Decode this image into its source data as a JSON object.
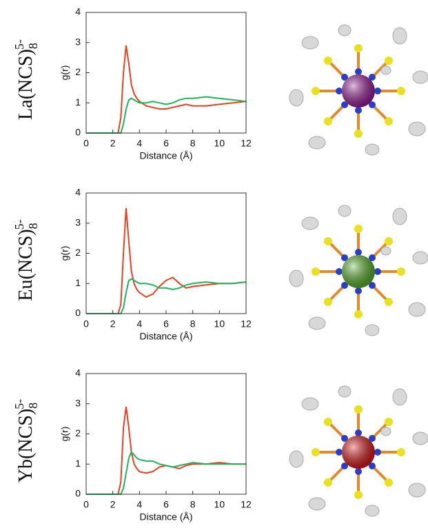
{
  "chart_data": [
    {
      "type": "line",
      "title": "La(NCS)",
      "title_sub": "8",
      "title_sup": "5-",
      "xlabel": "Distance (Å)",
      "ylabel": "g(r)",
      "xlim": [
        0,
        12
      ],
      "xticks": [
        0,
        2,
        4,
        6,
        8,
        10,
        12
      ],
      "ylim": [
        0,
        4
      ],
      "yticks": [
        0,
        1,
        2,
        3,
        4
      ],
      "x": [
        0,
        2,
        2.4,
        2.6,
        2.8,
        3,
        3.2,
        3.4,
        3.6,
        3.8,
        4,
        4.5,
        5,
        5.5,
        6,
        6.5,
        7,
        7.5,
        8,
        9,
        10,
        11,
        12
      ],
      "series": [
        {
          "color": "#e8401c",
          "values": [
            0,
            0,
            0,
            0.5,
            2.0,
            2.9,
            2.3,
            1.6,
            1.3,
            1.15,
            1.05,
            0.9,
            0.85,
            0.8,
            0.8,
            0.85,
            0.9,
            0.95,
            0.9,
            0.9,
            0.95,
            1.0,
            1.05
          ]
        },
        {
          "color": "#1fb35a",
          "values": [
            0,
            0,
            0,
            0,
            0.3,
            0.8,
            1.1,
            1.15,
            1.1,
            1.05,
            1.0,
            1.0,
            1.05,
            1.0,
            0.95,
            1.0,
            1.1,
            1.15,
            1.15,
            1.2,
            1.15,
            1.1,
            1.05
          ]
        }
      ],
      "molecule_color": "#9b1f9b"
    },
    {
      "type": "line",
      "title": "Eu(NCS)",
      "title_sub": "8",
      "title_sup": "5-",
      "xlabel": "Distance (Å)",
      "ylabel": "g(r)",
      "xlim": [
        0,
        12
      ],
      "xticks": [
        0,
        2,
        4,
        6,
        8,
        10,
        12
      ],
      "ylim": [
        0,
        4
      ],
      "yticks": [
        0,
        1,
        2,
        3,
        4
      ],
      "x": [
        0,
        2,
        2.4,
        2.6,
        2.8,
        3,
        3.2,
        3.4,
        3.6,
        3.8,
        4,
        4.5,
        5,
        5.5,
        6,
        6.5,
        7,
        7.5,
        8,
        9,
        10,
        11,
        12
      ],
      "series": [
        {
          "color": "#e8401c",
          "values": [
            0,
            0,
            0,
            0.3,
            2.0,
            3.5,
            2.4,
            1.4,
            1.0,
            0.8,
            0.7,
            0.55,
            0.65,
            0.9,
            1.1,
            1.2,
            1.0,
            0.85,
            0.9,
            0.95,
            1.0,
            1.0,
            1.05
          ]
        },
        {
          "color": "#1fb35a",
          "values": [
            0,
            0,
            0,
            0,
            0.2,
            0.7,
            1.1,
            1.15,
            1.1,
            1.05,
            1.0,
            1.0,
            0.95,
            0.85,
            0.85,
            0.8,
            0.85,
            0.95,
            1.0,
            1.05,
            1.0,
            1.0,
            1.05
          ]
        }
      ],
      "molecule_color": "#5cb82a"
    },
    {
      "type": "line",
      "title": "Yb(NCS)",
      "title_sub": "8",
      "title_sup": "5-",
      "xlabel": "Distance (Å)",
      "ylabel": "g(r)",
      "xlim": [
        0,
        12
      ],
      "xticks": [
        0,
        2,
        4,
        6,
        8,
        10,
        12
      ],
      "ylim": [
        0,
        4
      ],
      "yticks": [
        0,
        1,
        2,
        3,
        4
      ],
      "x": [
        0,
        2,
        2.4,
        2.6,
        2.8,
        3,
        3.2,
        3.4,
        3.6,
        3.8,
        4,
        4.5,
        5,
        5.5,
        6,
        6.5,
        7,
        7.5,
        8,
        9,
        10,
        11,
        12
      ],
      "series": [
        {
          "color": "#e8401c",
          "values": [
            0,
            0,
            0,
            0.4,
            2.2,
            2.9,
            2.2,
            1.4,
            1.0,
            0.85,
            0.75,
            0.7,
            0.75,
            0.9,
            0.95,
            0.9,
            0.85,
            0.95,
            1.0,
            1.0,
            1.05,
            1.0,
            1.0
          ]
        },
        {
          "color": "#1fb35a",
          "values": [
            0,
            0,
            0,
            0,
            0.2,
            0.7,
            1.2,
            1.4,
            1.3,
            1.2,
            1.15,
            1.1,
            1.1,
            1.0,
            0.95,
            0.9,
            0.95,
            1.0,
            1.05,
            1.0,
            1.0,
            1.0,
            1.0
          ]
        }
      ],
      "molecule_color": "#e01818"
    }
  ]
}
